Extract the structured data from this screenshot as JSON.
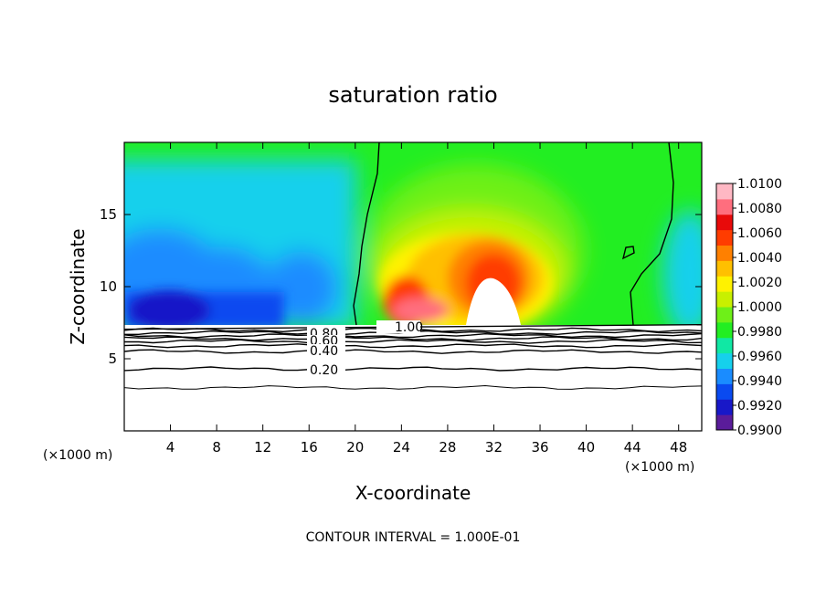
{
  "chart_data": {
    "type": "heatmap",
    "title": "saturation ratio",
    "xlabel": "X-coordinate",
    "ylabel": "Z-coordinate",
    "x_unit": "(×1000 m)",
    "z_unit": "(×1000 m)",
    "xlim": [
      0,
      50
    ],
    "ylim": [
      0,
      20
    ],
    "x_ticks": [
      4,
      8,
      12,
      16,
      20,
      24,
      28,
      32,
      36,
      40,
      44,
      48
    ],
    "y_ticks": [
      5,
      10,
      15
    ],
    "footer": "CONTOUR INTERVAL = 1.000E-01",
    "colorbar": {
      "min": 0.99,
      "max": 1.01,
      "tick_labels": [
        "0.9900",
        "0.9920",
        "0.9940",
        "0.9960",
        "0.9980",
        "1.0000",
        "1.0020",
        "1.0040",
        "1.0060",
        "1.0080",
        "1.0100"
      ],
      "colors": [
        "#5a1c9a",
        "#1818c8",
        "#0a4af0",
        "#1a8cff",
        "#16d0ec",
        "#10e8a4",
        "#22ee22",
        "#6ef018",
        "#c8f000",
        "#fff200",
        "#ffc000",
        "#ff8000",
        "#ff3c00",
        "#e80a0a",
        "#ff6e7e",
        "#ffb8c4"
      ]
    },
    "contour_labels": [
      "1.00",
      "0.80",
      "0.60",
      "0.40",
      "0.20"
    ],
    "lower_layer_z": [
      3.0,
      4.3,
      5.5,
      5.9,
      6.2,
      6.4,
      6.6,
      6.8,
      7.0
    ],
    "mask_top_z": 7.3
  }
}
